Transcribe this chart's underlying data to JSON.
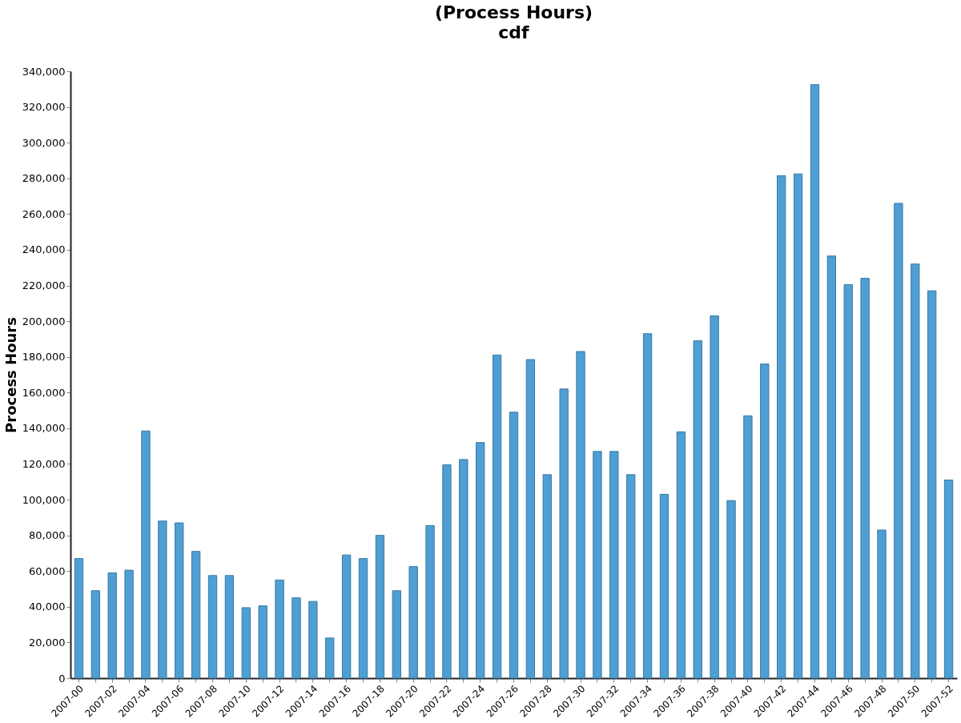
{
  "chart_data": {
    "type": "bar",
    "title": "(Process Hours)",
    "subtitle": "cdf",
    "ylabel": "Process Hours",
    "categories": [
      "2007-00",
      null,
      "2007-02",
      null,
      "2007-04",
      null,
      "2007-06",
      null,
      "2007-08",
      null,
      "2007-10",
      null,
      "2007-12",
      null,
      "2007-14",
      null,
      "2007-16",
      null,
      "2007-18",
      null,
      "2007-20",
      null,
      "2007-22",
      null,
      "2007-24",
      null,
      "2007-26",
      null,
      "2007-28",
      null,
      "2007-30",
      null,
      "2007-32",
      null,
      "2007-34",
      null,
      "2007-36",
      null,
      "2007-38",
      null,
      "2007-40",
      null,
      "2007-42",
      null,
      "2007-44",
      null,
      "2007-46",
      null,
      "2007-48",
      null,
      "2007-50",
      null,
      "2007-52"
    ],
    "values": [
      67000,
      49000,
      59000,
      60500,
      138500,
      88000,
      87000,
      71000,
      57500,
      57500,
      39500,
      40500,
      55000,
      45000,
      43000,
      22500,
      69000,
      67000,
      80000,
      49000,
      62500,
      85500,
      119500,
      122500,
      132000,
      181000,
      149000,
      178500,
      114000,
      162000,
      183000,
      127000,
      127000,
      114000,
      193000,
      103000,
      138000,
      189000,
      203000,
      99500,
      147000,
      176000,
      281500,
      282500,
      332500,
      236500,
      220500,
      224000,
      83000,
      266000,
      232000,
      217000,
      111000
    ],
    "color": "#4f9fd4",
    "ylim": [
      0,
      340000
    ],
    "yticks": [
      0,
      {
        "value": 20000,
        "label": "20,000"
      },
      {
        "value": 40000,
        "label": "40,000"
      },
      {
        "value": 60000,
        "label": "60,000"
      },
      {
        "value": 80000,
        "label": "80,000"
      },
      {
        "value": 100000,
        "label": "100,000"
      },
      {
        "value": 120000,
        "label": "120,000"
      },
      {
        "value": 140000,
        "label": "140,000"
      },
      {
        "value": 160000,
        "label": "160,000"
      },
      {
        "value": 180000,
        "label": "180,000"
      },
      {
        "value": 200000,
        "label": "200,000"
      },
      {
        "value": 220000,
        "label": "220,000"
      },
      {
        "value": 240000,
        "label": "240,000"
      },
      {
        "value": 260000,
        "label": "260,000"
      },
      {
        "value": 280000,
        "label": "280,000"
      },
      {
        "value": 300000,
        "label": "300,000"
      },
      {
        "value": 320000,
        "label": "320,000"
      },
      {
        "value": 340000,
        "label": "340,000"
      }
    ],
    "grid": false
  }
}
